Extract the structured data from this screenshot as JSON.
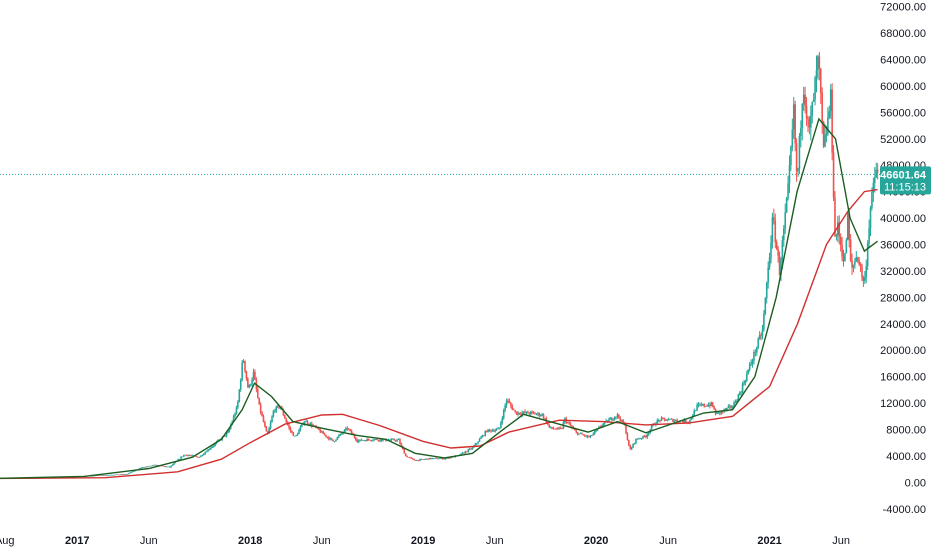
{
  "chart_data": {
    "type": "candlestick",
    "y_axis": {
      "ticks": [
        -4000,
        0,
        4000,
        8000,
        12000,
        16000,
        20000,
        24000,
        28000,
        32000,
        36000,
        40000,
        44000,
        48000,
        52000,
        56000,
        60000,
        64000,
        68000,
        72000
      ],
      "tick_labels": [
        "-4000.00",
        "0.00",
        "4000.00",
        "8000.00",
        "12000.00",
        "16000.00",
        "20000.00",
        "24000.00",
        "28000.00",
        "32000.00",
        "36000.00",
        "40000.00",
        "44000.00",
        "48000.00",
        "52000.00",
        "56000.00",
        "60000.00",
        "64000.00",
        "68000.00",
        "72000.00"
      ],
      "range": [
        -6000,
        73000
      ],
      "position": "right"
    },
    "x_axis": {
      "tick_labels": [
        {
          "label": "Aug",
          "date": "2016-08-01",
          "bold": false
        },
        {
          "label": "2017",
          "date": "2017-01-01",
          "bold": true
        },
        {
          "label": "Jun",
          "date": "2017-06-01",
          "bold": false
        },
        {
          "label": "2018",
          "date": "2018-01-01",
          "bold": true
        },
        {
          "label": "Jun",
          "date": "2018-06-01",
          "bold": false
        },
        {
          "label": "2019",
          "date": "2019-01-01",
          "bold": true
        },
        {
          "label": "Jun",
          "date": "2019-06-01",
          "bold": false
        },
        {
          "label": "2020",
          "date": "2020-01-01",
          "bold": true
        },
        {
          "label": "Jun",
          "date": "2020-06-01",
          "bold": false
        },
        {
          "label": "2021",
          "date": "2021-01-01",
          "bold": true
        },
        {
          "label": "Jun",
          "date": "2021-06-01",
          "bold": false
        }
      ]
    },
    "price": [
      [
        "2016-07-20",
        650
      ],
      [
        "2016-10-01",
        620
      ],
      [
        "2016-12-01",
        750
      ],
      [
        "2017-02-01",
        1000
      ],
      [
        "2017-03-15",
        1150
      ],
      [
        "2017-04-15",
        1200
      ],
      [
        "2017-05-15",
        2200
      ],
      [
        "2017-06-15",
        2600
      ],
      [
        "2017-07-15",
        2300
      ],
      [
        "2017-08-15",
        4200
      ],
      [
        "2017-09-15",
        3800
      ],
      [
        "2017-10-15",
        5600
      ],
      [
        "2017-11-15",
        7500
      ],
      [
        "2017-12-05",
        11500
      ],
      [
        "2017-12-17",
        19000
      ],
      [
        "2017-12-28",
        14000
      ],
      [
        "2018-01-08",
        16500
      ],
      [
        "2018-01-20",
        11500
      ],
      [
        "2018-02-06",
        7000
      ],
      [
        "2018-02-20",
        11000
      ],
      [
        "2018-03-05",
        11500
      ],
      [
        "2018-03-25",
        8000
      ],
      [
        "2018-04-06",
        6800
      ],
      [
        "2018-04-25",
        9300
      ],
      [
        "2018-05-15",
        8500
      ],
      [
        "2018-06-01",
        7500
      ],
      [
        "2018-06-25",
        6200
      ],
      [
        "2018-07-25",
        8200
      ],
      [
        "2018-08-15",
        6300
      ],
      [
        "2018-09-15",
        6500
      ],
      [
        "2018-10-15",
        6400
      ],
      [
        "2018-11-10",
        6400
      ],
      [
        "2018-11-25",
        4000
      ],
      [
        "2018-12-15",
        3300
      ],
      [
        "2019-01-15",
        3600
      ],
      [
        "2019-02-15",
        3600
      ],
      [
        "2019-03-15",
        4000
      ],
      [
        "2019-04-15",
        5200
      ],
      [
        "2019-05-15",
        7800
      ],
      [
        "2019-06-10",
        8000
      ],
      [
        "2019-06-26",
        12500
      ],
      [
        "2019-07-15",
        10500
      ],
      [
        "2019-08-15",
        10500
      ],
      [
        "2019-09-10",
        10200
      ],
      [
        "2019-09-25",
        8200
      ],
      [
        "2019-10-20",
        8000
      ],
      [
        "2019-10-26",
        9600
      ],
      [
        "2019-11-20",
        7500
      ],
      [
        "2019-12-18",
        6800
      ],
      [
        "2020-01-15",
        8800
      ],
      [
        "2020-02-14",
        10200
      ],
      [
        "2020-03-01",
        8600
      ],
      [
        "2020-03-12",
        4800
      ],
      [
        "2020-03-25",
        6500
      ],
      [
        "2020-04-15",
        7000
      ],
      [
        "2020-05-01",
        8800
      ],
      [
        "2020-05-15",
        9500
      ],
      [
        "2020-06-15",
        9400
      ],
      [
        "2020-07-15",
        9200
      ],
      [
        "2020-08-01",
        11500
      ],
      [
        "2020-09-01",
        11800
      ],
      [
        "2020-09-10",
        10300
      ],
      [
        "2020-10-15",
        11500
      ],
      [
        "2020-11-01",
        13800
      ],
      [
        "2020-11-25",
        18500
      ],
      [
        "2020-12-17",
        23000
      ],
      [
        "2021-01-08",
        40000
      ],
      [
        "2021-01-22",
        32000
      ],
      [
        "2021-02-10",
        44800
      ],
      [
        "2021-02-21",
        56000
      ],
      [
        "2021-02-28",
        45000
      ],
      [
        "2021-03-13",
        61000
      ],
      [
        "2021-03-25",
        52500
      ],
      [
        "2021-04-14",
        64000
      ],
      [
        "2021-04-25",
        50000
      ],
      [
        "2021-05-10",
        58000
      ],
      [
        "2021-05-19",
        37000
      ],
      [
        "2021-05-25",
        38500
      ],
      [
        "2021-06-08",
        33000
      ],
      [
        "2021-06-15",
        40000
      ],
      [
        "2021-06-22",
        32000
      ],
      [
        "2021-07-05",
        34500
      ],
      [
        "2021-07-20",
        29800
      ],
      [
        "2021-08-01",
        41000
      ],
      [
        "2021-08-14",
        47500
      ],
      [
        "2021-08-17",
        46601.64
      ]
    ],
    "ma_fast": [
      [
        "2016-07-20",
        620
      ],
      [
        "2017-01-15",
        900
      ],
      [
        "2017-06-01",
        2100
      ],
      [
        "2017-09-01",
        3800
      ],
      [
        "2017-11-01",
        6500
      ],
      [
        "2017-12-15",
        11000
      ],
      [
        "2018-01-10",
        15000
      ],
      [
        "2018-02-15",
        13000
      ],
      [
        "2018-04-01",
        9200
      ],
      [
        "2018-06-01",
        8200
      ],
      [
        "2018-08-15",
        7100
      ],
      [
        "2018-10-15",
        6500
      ],
      [
        "2018-12-15",
        4400
      ],
      [
        "2019-02-15",
        3700
      ],
      [
        "2019-04-15",
        4400
      ],
      [
        "2019-06-15",
        7800
      ],
      [
        "2019-08-01",
        10300
      ],
      [
        "2019-10-15",
        8800
      ],
      [
        "2019-12-15",
        7600
      ],
      [
        "2020-02-15",
        9200
      ],
      [
        "2020-04-15",
        7500
      ],
      [
        "2020-06-15",
        9000
      ],
      [
        "2020-08-15",
        10500
      ],
      [
        "2020-10-15",
        11000
      ],
      [
        "2020-12-01",
        16000
      ],
      [
        "2021-01-15",
        28000
      ],
      [
        "2021-02-28",
        44000
      ],
      [
        "2021-04-15",
        55000
      ],
      [
        "2021-05-20",
        52000
      ],
      [
        "2021-06-20",
        40000
      ],
      [
        "2021-07-20",
        35000
      ],
      [
        "2021-08-17",
        36500
      ]
    ],
    "ma_slow": [
      [
        "2016-07-20",
        600
      ],
      [
        "2017-03-01",
        700
      ],
      [
        "2017-08-01",
        1600
      ],
      [
        "2017-11-01",
        3500
      ],
      [
        "2018-01-01",
        6000
      ],
      [
        "2018-03-15",
        8800
      ],
      [
        "2018-06-01",
        10200
      ],
      [
        "2018-07-15",
        10300
      ],
      [
        "2018-10-01",
        8600
      ],
      [
        "2019-01-01",
        6200
      ],
      [
        "2019-03-01",
        5200
      ],
      [
        "2019-05-01",
        5500
      ],
      [
        "2019-07-01",
        7600
      ],
      [
        "2019-10-15",
        9400
      ],
      [
        "2020-01-15",
        9200
      ],
      [
        "2020-04-15",
        8700
      ],
      [
        "2020-07-15",
        9000
      ],
      [
        "2020-10-15",
        10000
      ],
      [
        "2021-01-01",
        14500
      ],
      [
        "2021-03-01",
        24000
      ],
      [
        "2021-05-01",
        36000
      ],
      [
        "2021-06-15",
        41000
      ],
      [
        "2021-07-20",
        44000
      ],
      [
        "2021-08-17",
        44300
      ]
    ],
    "last_price": {
      "value": 46601.64,
      "label": "46601.64",
      "countdown": "11:15:13"
    }
  },
  "colors": {
    "up": "#26a69a",
    "down": "#ef5350",
    "ma_fast": "#1b5e20",
    "ma_slow": "#d32f2f",
    "price_line": "#26a69a",
    "label_bg": "#26a69a",
    "axis_text": "#131722",
    "background": "#ffffff"
  }
}
